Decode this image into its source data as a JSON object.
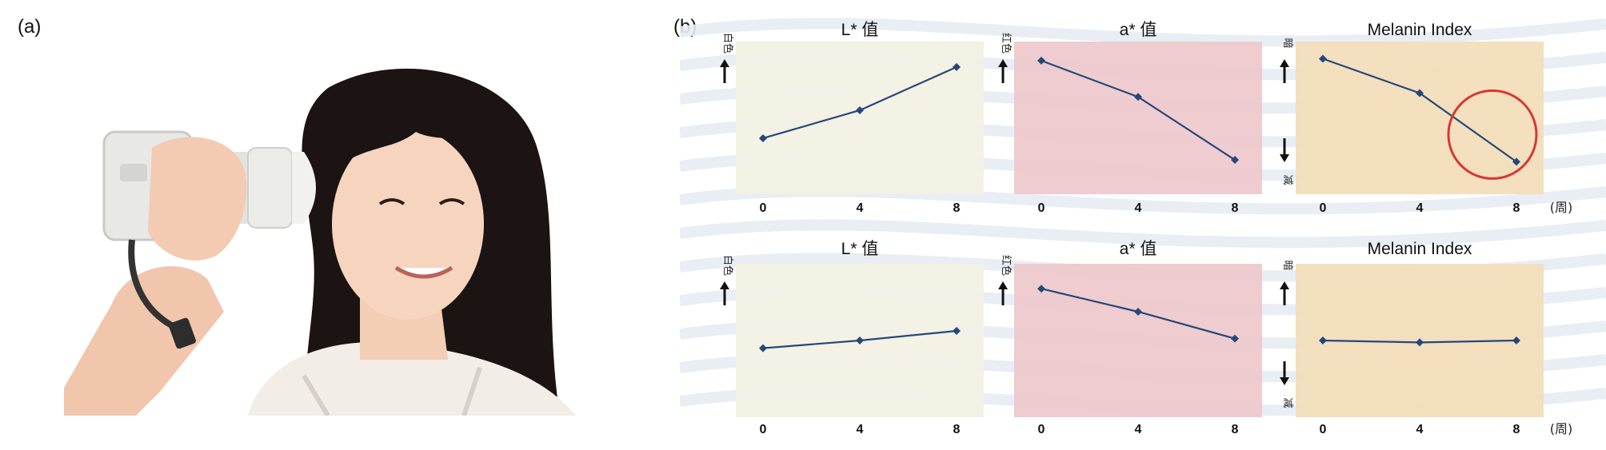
{
  "panel_labels": {
    "a": "(a)",
    "b": "(b)"
  },
  "colors": {
    "background": "#ffffff",
    "wave": "#e7ecf3",
    "L_bg": "#f3f0e3",
    "a_bg": "#eec8cb",
    "melanin_bg": "#f3dcb8",
    "line": "#25487a",
    "circle": "#d8382f"
  },
  "x_unit": "(周)",
  "annotations": {
    "whiter": "白色",
    "redder": "红色",
    "dark": "暗",
    "light": "减"
  },
  "chart_data": [
    {
      "type": "line",
      "title": "L* 值",
      "row": 1,
      "col": 1,
      "x": [
        0,
        4,
        8
      ],
      "values": [
        62,
        73,
        90
      ],
      "ylim": [
        40,
        100
      ],
      "x_ticks": [
        "0",
        "4",
        "8"
      ],
      "y_annotation_top": "白色",
      "highlight": false
    },
    {
      "type": "line",
      "title": "a* 值",
      "row": 1,
      "col": 2,
      "x": [
        0,
        4,
        8
      ],
      "values": [
        90,
        71,
        38
      ],
      "ylim": [
        20,
        100
      ],
      "x_ticks": [
        "0",
        "4",
        "8"
      ],
      "y_annotation_top": "红色",
      "highlight": false
    },
    {
      "type": "line",
      "title": "Melanin Index",
      "row": 1,
      "col": 3,
      "x": [
        0,
        4,
        8
      ],
      "values": [
        91,
        73,
        37
      ],
      "ylim": [
        20,
        100
      ],
      "x_ticks": [
        "0",
        "4",
        "8"
      ],
      "y_annotation_top": "暗",
      "y_annotation_bottom": "减",
      "x_unit": "(周)",
      "highlight": true
    },
    {
      "type": "line",
      "title": "L* 值",
      "row": 2,
      "col": 1,
      "x": [
        0,
        4,
        8
      ],
      "values": [
        56,
        60,
        65
      ],
      "ylim": [
        20,
        100
      ],
      "x_ticks": [
        "0",
        "4",
        "8"
      ],
      "y_annotation_top": "白色",
      "highlight": false
    },
    {
      "type": "line",
      "title": "a* 值",
      "row": 2,
      "col": 2,
      "x": [
        0,
        4,
        8
      ],
      "values": [
        87,
        75,
        61
      ],
      "ylim": [
        20,
        100
      ],
      "x_ticks": [
        "0",
        "4",
        "8"
      ],
      "y_annotation_top": "红色",
      "highlight": false
    },
    {
      "type": "line",
      "title": "Melanin Index",
      "row": 2,
      "col": 3,
      "x": [
        0,
        4,
        8
      ],
      "values": [
        60,
        59,
        60
      ],
      "ylim": [
        20,
        100
      ],
      "x_ticks": [
        "0",
        "4",
        "8"
      ],
      "y_annotation_top": "暗",
      "y_annotation_bottom": "减",
      "x_unit": "(周)",
      "highlight": false
    }
  ]
}
